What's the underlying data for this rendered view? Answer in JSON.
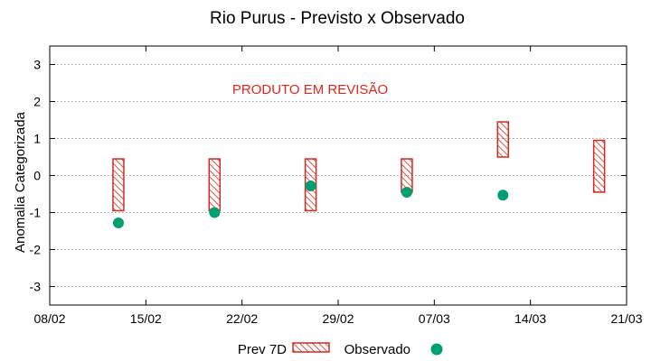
{
  "chart_data": {
    "type": "scatter",
    "title": "Rio Purus - Previsto x Observado",
    "ylabel": "Anomalia Categorizada",
    "xlabel": "",
    "annotation": "PRODUTO EM REVISÃO",
    "x_ticks": [
      "08/02",
      "15/02",
      "22/02",
      "29/02",
      "07/03",
      "14/03",
      "21/03"
    ],
    "x_range": [
      "08/02",
      "21/03"
    ],
    "ylim": [
      -3.5,
      3.5
    ],
    "y_ticks": [
      -3,
      -2,
      -1,
      0,
      1,
      2,
      3
    ],
    "grid": true,
    "legend_position": "bottom",
    "series": [
      {
        "name": "Prev 7D",
        "kind": "range-box",
        "points": [
          {
            "date": "13/02",
            "low": -0.95,
            "high": 0.45
          },
          {
            "date": "20/02",
            "low": -0.95,
            "high": 0.45
          },
          {
            "date": "27/02",
            "low": -0.95,
            "high": 0.45
          },
          {
            "date": "05/03",
            "low": -0.45,
            "high": 0.45
          },
          {
            "date": "12/03",
            "low": 0.5,
            "high": 1.45
          },
          {
            "date": "19/03",
            "low": -0.45,
            "high": 0.95
          }
        ]
      },
      {
        "name": "Observado",
        "kind": "point",
        "points": [
          {
            "date": "13/02",
            "value": -1.28
          },
          {
            "date": "20/02",
            "value": -1.0
          },
          {
            "date": "27/02",
            "value": -0.28
          },
          {
            "date": "05/03",
            "value": -0.45
          },
          {
            "date": "12/03",
            "value": -0.53
          }
        ]
      }
    ]
  },
  "colors": {
    "forecast": "#d42a1e",
    "observed": "#009e73",
    "annotation": "#e3261f",
    "grid": "#a0a0a0"
  }
}
